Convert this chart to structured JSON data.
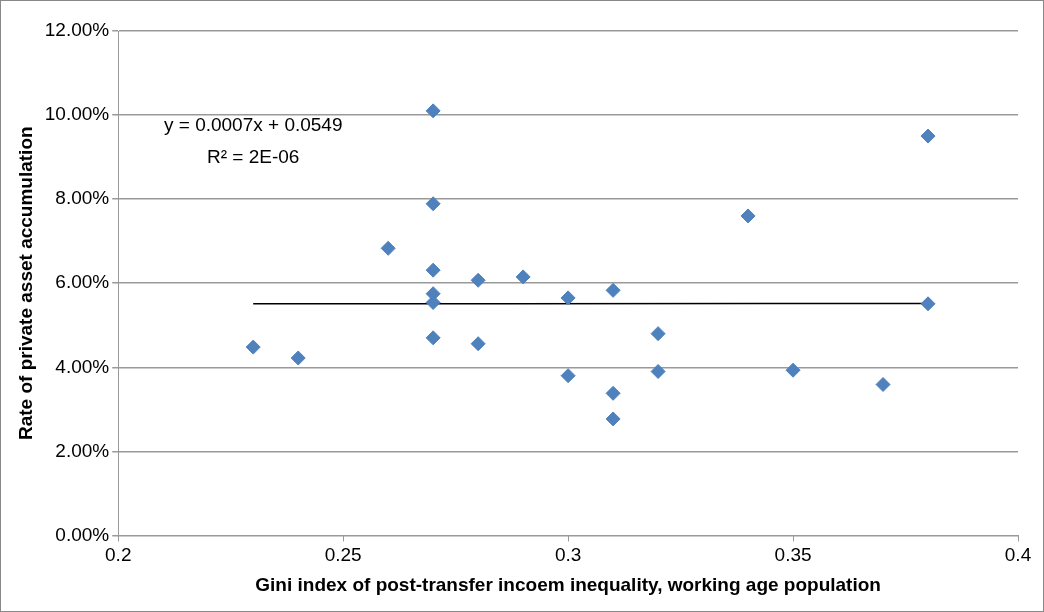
{
  "chart_data": {
    "type": "scatter",
    "xlabel": "Gini index of post-transfer incoem inequality, working age population",
    "ylabel": "Rate of private asset accumulation",
    "xlim": [
      0.2,
      0.4
    ],
    "xticks": [
      0.2,
      0.25,
      0.3,
      0.35,
      0.4
    ],
    "ylim": [
      0,
      0.12
    ],
    "yticks": [
      {
        "value": 0,
        "label": "0.00%"
      },
      {
        "value": 0.02,
        "label": "2.00%"
      },
      {
        "value": 0.04,
        "label": "4.00%"
      },
      {
        "value": 0.06,
        "label": "6.00%"
      },
      {
        "value": 0.08,
        "label": "8.00%"
      },
      {
        "value": 0.1,
        "label": "10.00%"
      },
      {
        "value": 0.12,
        "label": "12.00%"
      }
    ],
    "grid": "y",
    "legend": false,
    "marker": "diamond",
    "annotations": [
      "y = 0.0007x + 0.0549",
      "R² = 2E-06"
    ],
    "series": [
      {
        "color": "#4f81bd",
        "x": [
          0.27,
          0.27,
          0.26,
          0.27,
          0.28,
          0.29,
          0.27,
          0.27,
          0.27,
          0.28,
          0.23,
          0.24,
          0.3,
          0.3,
          0.31,
          0.31,
          0.31,
          0.32,
          0.32,
          0.34,
          0.35,
          0.37,
          0.38,
          0.38
        ],
        "values": [
          0.101,
          0.0789,
          0.0683,
          0.0631,
          0.0607,
          0.0615,
          0.0575,
          0.0554,
          0.047,
          0.0456,
          0.0448,
          0.0422,
          0.0565,
          0.038,
          0.0583,
          0.0338,
          0.0277,
          0.048,
          0.039,
          0.076,
          0.0393,
          0.0359,
          0.095,
          0.0551
        ]
      },
      {
        "type": "line",
        "color": "#000000",
        "marker": "none",
        "x": [
          0.23,
          0.38
        ],
        "values": [
          0.0551,
          0.0552
        ]
      }
    ]
  }
}
